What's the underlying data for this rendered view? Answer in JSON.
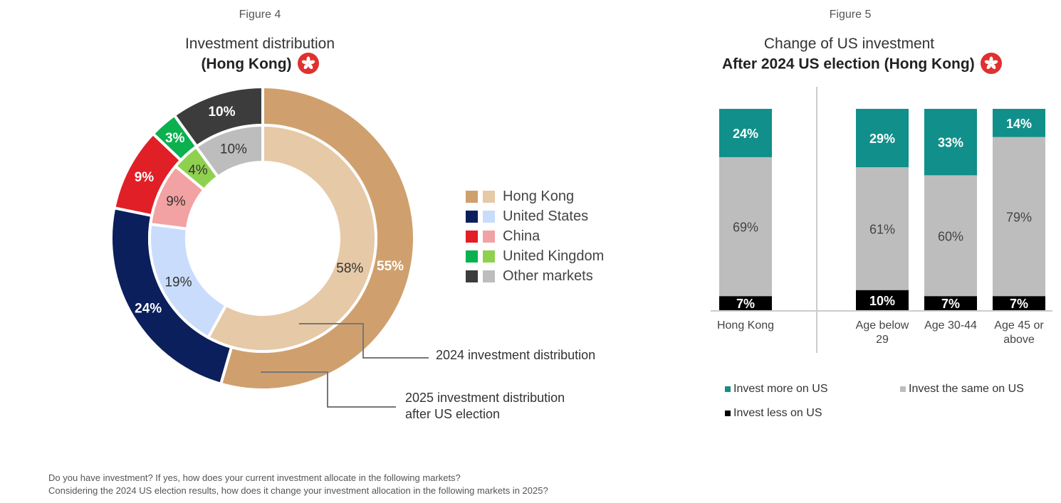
{
  "figure4": {
    "figure_label": "Figure 4",
    "title_line1": "Investment distribution",
    "title_line2": "(Hong Kong)",
    "annotation_inner": "2024 investment distribution",
    "annotation_outer_line1": "2025 investment distribution",
    "annotation_outer_line2": "after US election",
    "legend": [
      {
        "name": "Hong Kong",
        "color_outer": "#cfa06e",
        "color_inner": "#e6c9a6"
      },
      {
        "name": "United States",
        "color_outer": "#0b1f5c",
        "color_inner": "#c9dcfb"
      },
      {
        "name": "China",
        "color_outer": "#e01f26",
        "color_inner": "#f2a2a2"
      },
      {
        "name": "United Kingdom",
        "color_outer": "#0bb14f",
        "color_inner": "#8fd14f"
      },
      {
        "name": "Other markets",
        "color_outer": "#3c3c3c",
        "color_inner": "#bdbdbd"
      }
    ]
  },
  "figure5": {
    "figure_label": "Figure 5",
    "title_line1": "Change of US investment",
    "title_line2": "After 2024 US election (Hong Kong)",
    "legend": [
      {
        "name": "Invest more on US",
        "color": "#118f8a"
      },
      {
        "name": "Invest the same on US",
        "color": "#bdbdbd"
      },
      {
        "name": "Invest less on US",
        "color": "#000000"
      }
    ]
  },
  "footnote": {
    "line1": "Do you have investment? If yes, how does your current investment allocate in the following markets?",
    "line2": "Considering the 2024 US election results, how does it change your investment allocation in the following markets in 2025?"
  },
  "chart_data": [
    {
      "type": "pie",
      "title": "Investment distribution (Hong Kong)",
      "categories": [
        "Hong Kong",
        "United States",
        "China",
        "United Kingdom",
        "Other markets"
      ],
      "series": [
        {
          "name": "2025 investment distribution after US election",
          "values": [
            55,
            24,
            9,
            3,
            10
          ],
          "labels": [
            "55%",
            "24%",
            "9%",
            "3%",
            "10%"
          ]
        },
        {
          "name": "2024 investment distribution",
          "values": [
            58,
            19,
            9,
            4,
            10
          ],
          "labels": [
            "58%",
            "19%",
            "9%",
            "4%",
            "10%"
          ]
        }
      ],
      "legend_position": "right"
    },
    {
      "type": "bar",
      "stacked": true,
      "title": "Change of US investment After 2024 US election (Hong Kong)",
      "categories": [
        "Hong Kong",
        "Age below 29",
        "Age 30-44",
        "Age 45 or above"
      ],
      "series": [
        {
          "name": "Invest less on US",
          "values": [
            7,
            10,
            7,
            7
          ],
          "labels": [
            "7%",
            "10%",
            "7%",
            "7%"
          ]
        },
        {
          "name": "Invest the same on US",
          "values": [
            69,
            61,
            60,
            79
          ],
          "labels": [
            "69%",
            "61%",
            "60%",
            "79%"
          ]
        },
        {
          "name": "Invest more on US",
          "values": [
            24,
            29,
            33,
            14
          ],
          "labels": [
            "24%",
            "29%",
            "33%",
            "14%"
          ]
        }
      ],
      "ylim": [
        0,
        100
      ],
      "legend_position": "bottom"
    }
  ]
}
